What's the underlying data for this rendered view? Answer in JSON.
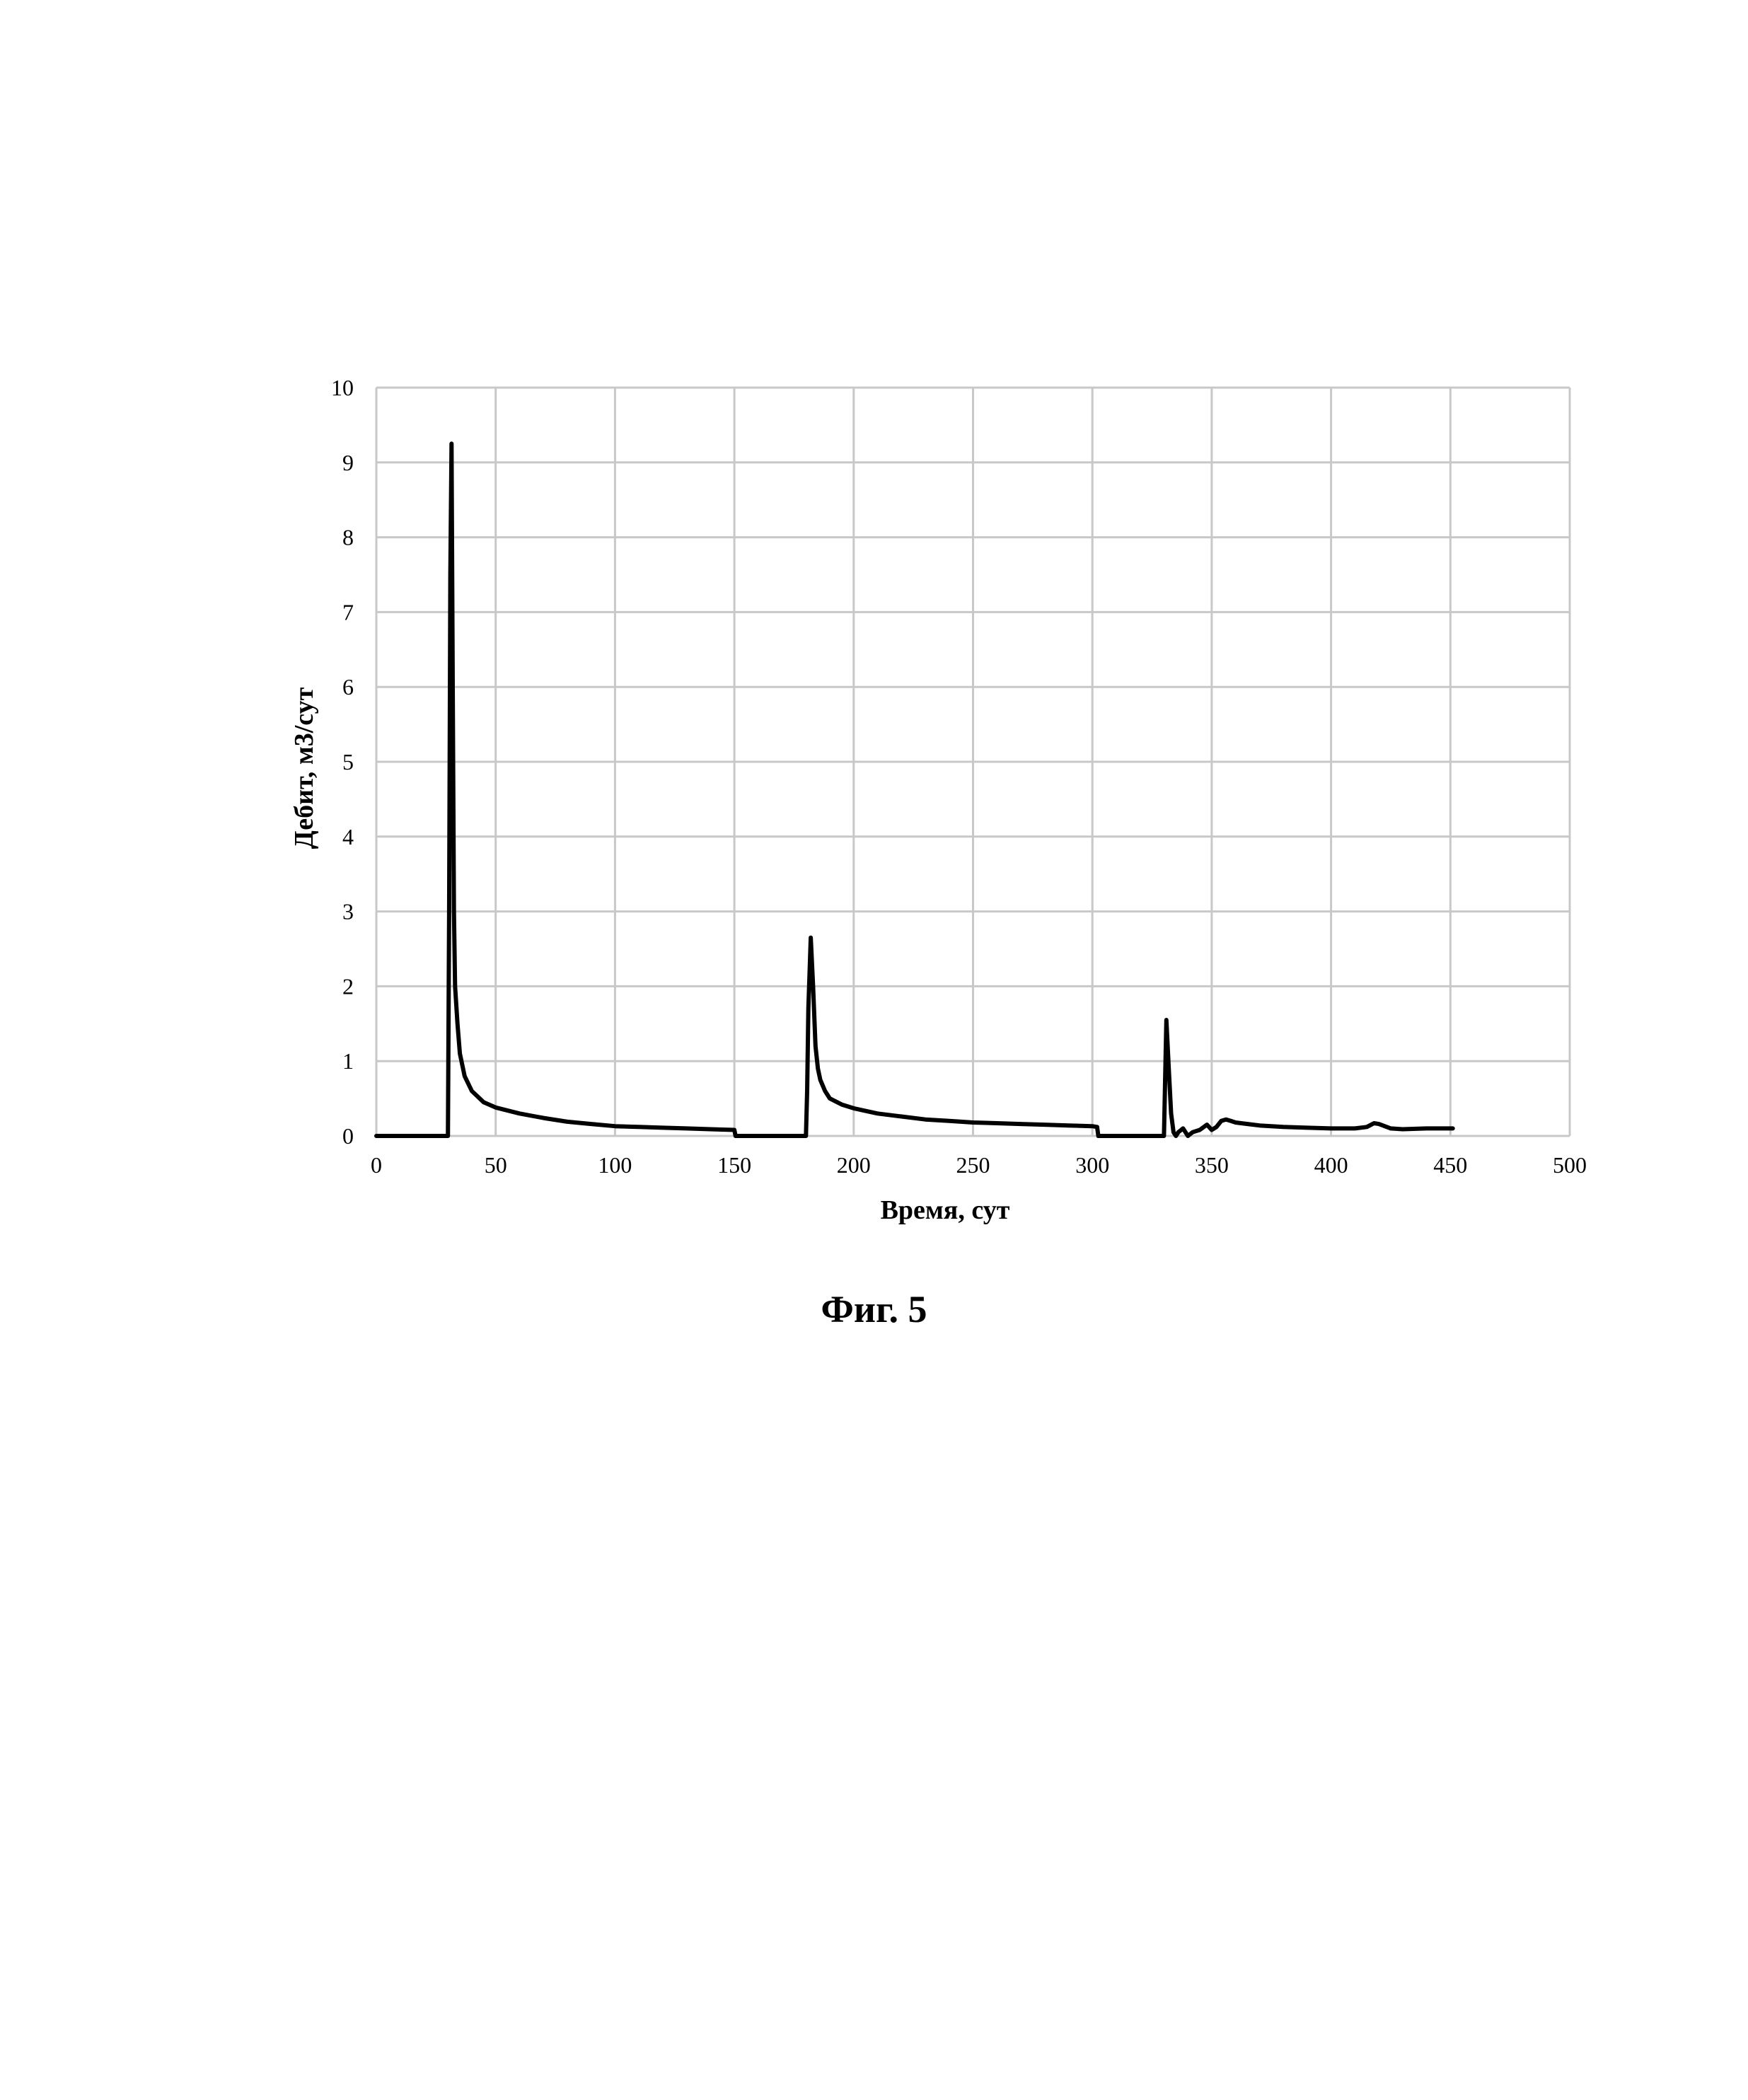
{
  "figure": {
    "caption": "Фиг. 5"
  },
  "chart_data": {
    "type": "line",
    "title": "",
    "xlabel": "Время, сут",
    "ylabel": "Дебит, м3/сут",
    "xlim": [
      0,
      500
    ],
    "ylim": [
      0,
      10
    ],
    "x_ticks": [
      0,
      50,
      100,
      150,
      200,
      250,
      300,
      350,
      400,
      450,
      500
    ],
    "y_ticks": [
      0,
      1,
      2,
      3,
      4,
      5,
      6,
      7,
      8,
      9,
      10
    ],
    "grid": true,
    "legend": "none",
    "series": [
      {
        "color": "#000000",
        "x": [
          0,
          30,
          30.5,
          31,
          31.5,
          32,
          32.5,
          33,
          34,
          35,
          37,
          40,
          45,
          50,
          60,
          70,
          80,
          90,
          100,
          110,
          120,
          130,
          140,
          150,
          150.5,
          160,
          170,
          180,
          180.5,
          181,
          182,
          183,
          184,
          185,
          186,
          188,
          190,
          195,
          200,
          210,
          220,
          230,
          240,
          250,
          260,
          270,
          280,
          290,
          300,
          302,
          302.5,
          310,
          320,
          330,
          331,
          332,
          333,
          334,
          335,
          336,
          338,
          340,
          342,
          345,
          348,
          350,
          352,
          354,
          356,
          358,
          360,
          365,
          370,
          380,
          390,
          400,
          410,
          415,
          418,
          420,
          425,
          430,
          440,
          450,
          451
        ],
        "y": [
          0,
          0,
          3.0,
          7.5,
          9.25,
          6.0,
          3.0,
          2.0,
          1.5,
          1.1,
          0.8,
          0.6,
          0.45,
          0.38,
          0.3,
          0.24,
          0.19,
          0.16,
          0.13,
          0.12,
          0.11,
          0.1,
          0.09,
          0.08,
          0,
          0,
          0,
          0,
          0.6,
          1.7,
          2.65,
          2.0,
          1.2,
          0.9,
          0.75,
          0.6,
          0.5,
          0.42,
          0.37,
          0.3,
          0.26,
          0.22,
          0.2,
          0.18,
          0.17,
          0.16,
          0.15,
          0.14,
          0.13,
          0.12,
          0,
          0,
          0,
          0,
          1.55,
          0.9,
          0.3,
          0.05,
          0.0,
          0.05,
          0.1,
          0.0,
          0.05,
          0.08,
          0.15,
          0.08,
          0.12,
          0.2,
          0.22,
          0.2,
          0.18,
          0.16,
          0.14,
          0.12,
          0.11,
          0.1,
          0.1,
          0.12,
          0.17,
          0.16,
          0.1,
          0.09,
          0.1,
          0.1,
          0.1
        ]
      }
    ]
  }
}
